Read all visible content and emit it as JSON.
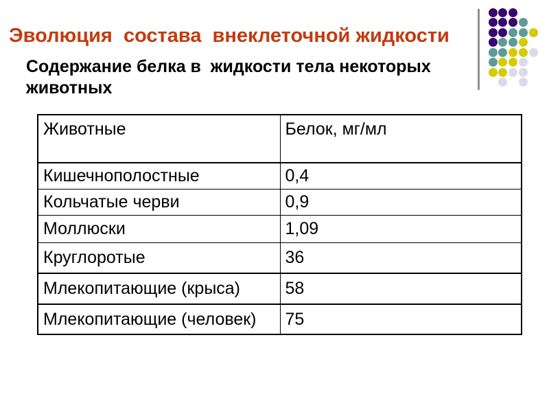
{
  "slide": {
    "title": "Эволюция  состава  внеклеточной жидкости",
    "title_color": "#C33A0E",
    "subtitle_line1": "Содержание белка в  жидкости тела некоторых",
    "subtitle_line2": "животных"
  },
  "table": {
    "headers": [
      "Животные",
      "Белок, мг/мл"
    ],
    "rows": [
      [
        "Кишечнополостные",
        "0,4"
      ],
      [
        "Кольчатые черви",
        "0,9"
      ],
      [
        "Моллюски",
        "1,09"
      ],
      [
        "Круглоротые",
        "36"
      ],
      [
        "Млекопитающие (крыса)",
        "58"
      ],
      [
        "Млекопитающие (человек)",
        "75"
      ]
    ]
  },
  "chart_data": {
    "type": "table",
    "title": "Содержание белка в жидкости тела некоторых животных",
    "columns": [
      "Животные",
      "Белок, мг/мл"
    ],
    "categories": [
      "Кишечнополостные",
      "Кольчатые черви",
      "Моллюски",
      "Круглоротые",
      "Млекопитающие (крыса)",
      "Млекопитающие (человек)"
    ],
    "values": [
      0.4,
      0.9,
      1.09,
      36,
      58,
      75
    ]
  },
  "decoration": {
    "divider_line_color": "#919191",
    "dot_colors": {
      "P": "#38086B",
      "T": "#5E9B96",
      "Y": "#D4CB07",
      "L": "#DCDAEA"
    },
    "dot_pattern": [
      "PPP",
      "PPPT",
      "PPTTY",
      "PTTY",
      "TTYYL",
      "TYYL",
      "YYLL",
      ".L.L"
    ]
  }
}
